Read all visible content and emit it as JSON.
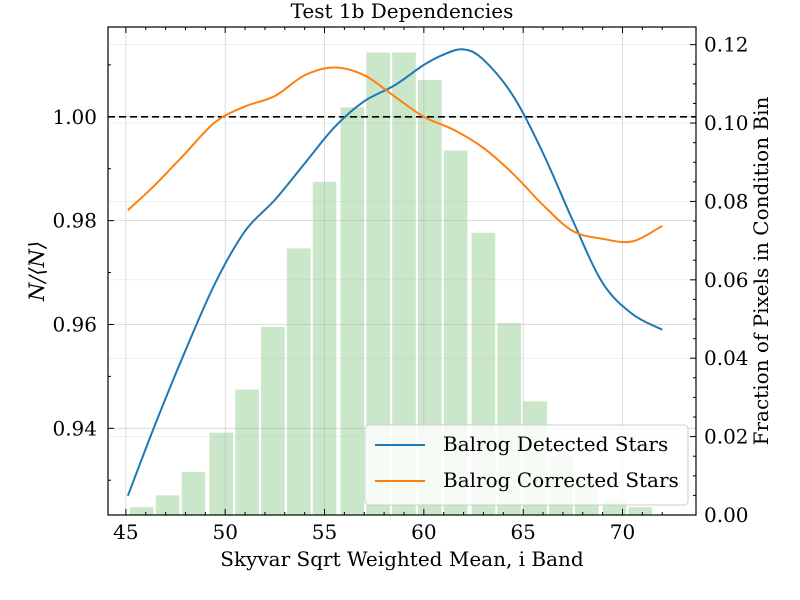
{
  "chart_data": {
    "type": "line",
    "title": "Test 1b Dependencies",
    "xlabel": "Skyvar Sqrt Weighted Mean, i Band",
    "ylabel": "N/⟨N⟩",
    "ylabel_right": "Fraction of Pixels in Condition Bin",
    "xlim": [
      44.1,
      73.7
    ],
    "ylim": [
      0.9233,
      1.0173
    ],
    "y2lim": [
      0.0,
      0.1245
    ],
    "x_ticks": [
      "45",
      "50",
      "55",
      "60",
      "65",
      "70"
    ],
    "y_ticks": [
      "0.94",
      "0.96",
      "0.98",
      "1.00"
    ],
    "y2_ticks": [
      "0.00",
      "0.02",
      "0.04",
      "0.06",
      "0.08",
      "0.10",
      "0.12"
    ],
    "grid": true,
    "reference_line": 1.0,
    "legend_position": "lower-right",
    "series": [
      {
        "name": "Balrog Detected Stars",
        "color": "#1f77b4",
        "x": [
          45.1,
          46.5,
          48.0,
          49.5,
          51.0,
          52.5,
          54.0,
          55.5,
          57.0,
          58.5,
          60.0,
          61.0,
          62.0,
          63.0,
          64.5,
          66.0,
          67.5,
          69.0,
          70.5,
          72.0
        ],
        "y": [
          0.927,
          0.941,
          0.955,
          0.968,
          0.978,
          0.984,
          0.991,
          0.998,
          1.003,
          1.006,
          1.01,
          1.012,
          1.013,
          1.011,
          1.004,
          0.993,
          0.98,
          0.968,
          0.962,
          0.959
        ]
      },
      {
        "name": "Balrog Corrected Stars",
        "color": "#ff7f0e",
        "x": [
          45.1,
          46.5,
          48.0,
          49.5,
          51.0,
          52.5,
          54.0,
          55.5,
          57.0,
          58.5,
          60.0,
          61.5,
          63.0,
          64.5,
          66.0,
          67.5,
          69.0,
          70.5,
          72.0
        ],
        "y": [
          0.982,
          0.987,
          0.993,
          0.999,
          1.002,
          1.004,
          1.008,
          1.0095,
          1.008,
          1.004,
          1.0,
          0.9975,
          0.994,
          0.989,
          0.983,
          0.978,
          0.9765,
          0.976,
          0.979
        ]
      }
    ],
    "histogram": {
      "color": "#2ca02c",
      "bin_width": 1.32,
      "x": [
        45.8,
        47.1,
        48.4,
        49.8,
        51.1,
        52.4,
        53.7,
        55.0,
        56.4,
        57.7,
        59.0,
        60.3,
        61.6,
        63.0,
        64.3,
        65.6,
        66.9,
        68.2,
        69.6,
        70.9
      ],
      "y": [
        0.002,
        0.005,
        0.011,
        0.021,
        0.032,
        0.048,
        0.068,
        0.085,
        0.104,
        0.118,
        0.118,
        0.111,
        0.093,
        0.072,
        0.049,
        0.029,
        0.015,
        0.009,
        0.004,
        0.002
      ]
    }
  }
}
